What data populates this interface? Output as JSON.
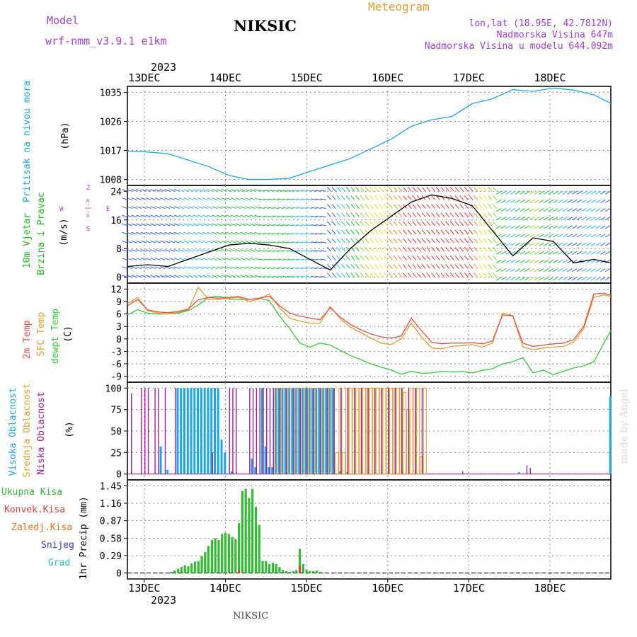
{
  "header": {
    "model_label": "Model",
    "model_name": "wrf-nmm_v3.9.1 e1km",
    "station": "NIKSIC",
    "product": "Meteogram",
    "coords": "lon,lat (18.95E, 42.7812N)",
    "elevation": "Nadmorska Visina 647m",
    "model_elevation": "Nadmorska Visina u modelu 644.092m",
    "year": "2023",
    "footer_station": "NIKSIC",
    "watermark": "made by Angel"
  },
  "colors": {
    "pressure": "#1aa7e8",
    "temp2m": "#f04a4a",
    "sfc_temp": "#e0a030",
    "dewpt": "#33cc33",
    "high_cloud": "#1aa7e8",
    "mid_cloud": "#e0a030",
    "low_cloud": "#a020a0",
    "total_precip": "#33bb33",
    "conv_precip": "#e04040",
    "frozen": "#e87020",
    "snow": "#3b3bd0",
    "hail": "#20c0c0",
    "wind_label": "#22bb22",
    "wind_dir_label": "#a040d0",
    "grid": "#8a8a8a"
  },
  "chart_data": {
    "time_axis": {
      "tick_labels": [
        "13DEC",
        "14DEC",
        "15DEC",
        "16DEC",
        "17DEC",
        "18DEC"
      ],
      "year": "2023",
      "start": "12DEC 19h",
      "end": "18DEC 12h"
    },
    "panels": [
      {
        "id": "pressure",
        "type": "line",
        "ylabel": [
          "Pritisak na nivou mora",
          "(hPa)"
        ],
        "yticks": [
          "1008",
          "1017",
          "1026",
          "1035"
        ],
        "ylim": [
          1008,
          1035
        ],
        "series": [
          {
            "hours": [
              0,
              6,
              12,
              18,
              24,
              30,
              36,
              42,
              48,
              54,
              60,
              66,
              72,
              78,
              84,
              90,
              96,
              102,
              108,
              114,
              120,
              126,
              132,
              138,
              143
            ],
            "values": [
              1016.8,
              1016.5,
              1016,
              1014,
              1012,
              1009.3,
              1008,
              1008,
              1008.4,
              1010.5,
              1012.5,
              1014.5,
              1017.5,
              1020.5,
              1024.5,
              1026.5,
              1027.5,
              1031.5,
              1033,
              1035.8,
              1035.3,
              1036.3,
              1035.7,
              1034.2,
              1031.6
            ]
          }
        ]
      },
      {
        "id": "wind",
        "type": "line",
        "ylabel": [
          "10m Vjetar",
          "Brzina i Pravac",
          "(m/s)"
        ],
        "direction_legend": [
          "W",
          "<-|->",
          "E",
          "S",
          "Z"
        ],
        "yticks": [
          "0",
          "8",
          "16",
          "24"
        ],
        "ylim": [
          0,
          24
        ],
        "series": [
          {
            "name": "speed",
            "hours": [
              0,
              6,
              12,
              18,
              24,
              30,
              36,
              42,
              48,
              54,
              60,
              66,
              72,
              78,
              84,
              90,
              96,
              102,
              108,
              114,
              120,
              126,
              132,
              138,
              143
            ],
            "values": [
              3,
              3.5,
              3,
              5,
              7,
              9,
              9.5,
              9,
              8,
              5,
              2,
              8,
              13,
              17,
              21,
              23,
              22,
              20,
              13,
              6,
              11,
              10,
              4,
              5,
              4
            ]
          }
        ]
      },
      {
        "id": "temperature",
        "type": "line",
        "ylabel": [
          "2m Temp",
          "SFC Temp",
          "dewpt Temp",
          "(C)"
        ],
        "yticks": [
          "-9",
          "-6",
          "-3",
          "0",
          "3",
          "6",
          "9",
          "12"
        ],
        "ylim": [
          -9,
          12
        ],
        "series": [
          {
            "name": "2m Temp",
            "hours": [
              0,
              3,
              6,
              9,
              12,
              15,
              18,
              21,
              24,
              27,
              30,
              33,
              36,
              39,
              42,
              45,
              48,
              51,
              54,
              57,
              60,
              63,
              66,
              69,
              72,
              75,
              78,
              81,
              84,
              87,
              90,
              93,
              96,
              99,
              102,
              105,
              108,
              111,
              114,
              117,
              120,
              123,
              126,
              129,
              132,
              135,
              138,
              141,
              143
            ],
            "values": [
              8,
              9.5,
              7,
              6.5,
              6.3,
              6.6,
              7.2,
              9.4,
              10,
              9.8,
              10,
              10.2,
              9.5,
              9.8,
              10.3,
              8,
              6.2,
              5.5,
              5,
              4.6,
              7.5,
              5.2,
              3.5,
              2.2,
              1.2,
              0.5,
              0.2,
              0.7,
              5,
              2,
              -0.8,
              -1.2,
              -1,
              -1,
              -0.9,
              -1.2,
              -0.5,
              5.8,
              5.5,
              -1,
              -1.8,
              -1.5,
              -1.2,
              -1,
              -0.2,
              3,
              10.8,
              11,
              10.5
            ]
          },
          {
            "name": "SFC Temp",
            "hours": [
              0,
              3,
              6,
              9,
              12,
              15,
              18,
              21,
              24,
              27,
              30,
              33,
              36,
              39,
              42,
              45,
              48,
              51,
              54,
              57,
              60,
              63,
              66,
              69,
              72,
              75,
              78,
              81,
              84,
              87,
              90,
              93,
              96,
              99,
              102,
              105,
              108,
              111,
              114,
              117,
              120,
              123,
              126,
              129,
              132,
              135,
              138,
              141,
              143
            ],
            "values": [
              8.5,
              10,
              6.8,
              6.2,
              6,
              6.4,
              7,
              12.4,
              9.5,
              9.5,
              9.8,
              10,
              9,
              9.6,
              10.8,
              7.5,
              5,
              4.3,
              3.8,
              3.8,
              7.8,
              4.8,
              2.8,
              1.5,
              0.2,
              -1,
              -1.4,
              0,
              3.8,
              0.5,
              -2.2,
              -2.4,
              -1.8,
              -1.6,
              -1.4,
              -2,
              -1,
              6.2,
              5.6,
              -2,
              -2.6,
              -2.2,
              -2,
              -1.8,
              -0.8,
              2.5,
              10,
              10.6,
              10.2
            ]
          },
          {
            "name": "dewpt Temp",
            "hours": [
              0,
              3,
              6,
              9,
              12,
              15,
              18,
              21,
              24,
              27,
              30,
              33,
              36,
              39,
              42,
              45,
              48,
              51,
              54,
              57,
              60,
              63,
              66,
              69,
              72,
              75,
              78,
              81,
              84,
              87,
              90,
              93,
              96,
              99,
              102,
              105,
              108,
              111,
              114,
              117,
              120,
              123,
              126,
              129,
              132,
              135,
              138,
              141,
              143
            ],
            "values": [
              5.8,
              7,
              6.2,
              6,
              6,
              6.2,
              6.8,
              8.2,
              10,
              10.3,
              9.6,
              9.5,
              9.5,
              9.8,
              9.2,
              5.5,
              2.5,
              -1,
              -2,
              -1,
              -1.5,
              -2.8,
              -4,
              -5,
              -6,
              -6.8,
              -7.5,
              -8.5,
              -7.8,
              -8.3,
              -8.2,
              -7.8,
              -8,
              -7.8,
              -8.2,
              -7.6,
              -7.2,
              -6,
              -5.5,
              -4.5,
              -8.2,
              -7.5,
              -8.6,
              -7.8,
              -7,
              -6.5,
              -5.5,
              -1,
              2
            ]
          }
        ]
      },
      {
        "id": "clouds",
        "type": "bar",
        "ylabel": [
          "Visoka Oblacnost",
          "Srednja Oblacnost",
          "Niska Oblacnost",
          "(%)"
        ],
        "yticks": [
          "0",
          "25",
          "50",
          "75",
          "100"
        ],
        "ylim": [
          0,
          100
        ],
        "series": [
          {
            "name": "Visoka Oblacnost",
            "hours": [
              10,
              12,
              15,
              16,
              17,
              18,
              19,
              20,
              21,
              22,
              23,
              24,
              25,
              26,
              27,
              28,
              29,
              31,
              37,
              38,
              40,
              41,
              42,
              43,
              44,
              45,
              46,
              47,
              48,
              49,
              50,
              51,
              52,
              53,
              54,
              55,
              56,
              57,
              58,
              59,
              60,
              61,
              63,
              65,
              116,
              143
            ],
            "values": [
              32,
              5,
              100,
              100,
              100,
              100,
              100,
              100,
              100,
              100,
              100,
              100,
              100,
              100,
              100,
              40,
              25,
              3,
              18,
              8,
              100,
              32,
              8,
              8,
              100,
              100,
              100,
              100,
              100,
              100,
              100,
              100,
              100,
              100,
              100,
              100,
              100,
              100,
              100,
              100,
              100,
              100,
              3,
              2,
              2,
              90
            ]
          },
          {
            "name": "Srednja Oblacnost",
            "hours": [
              44,
              46,
              48,
              50,
              52,
              54,
              56,
              58,
              60,
              62,
              63,
              64,
              65,
              66,
              67,
              68,
              69,
              70,
              71,
              72,
              73,
              74,
              75,
              76,
              77,
              78,
              79,
              80,
              81,
              82,
              83,
              84,
              85,
              86,
              87,
              88
            ],
            "values": [
              100,
              100,
              100,
              100,
              100,
              100,
              100,
              100,
              100,
              25,
              100,
              25,
              100,
              100,
              100,
              100,
              100,
              100,
              100,
              100,
              100,
              100,
              100,
              100,
              100,
              100,
              100,
              100,
              100,
              95,
              75,
              100,
              100,
              100,
              20,
              100
            ]
          },
          {
            "name": "Niska Oblacnost",
            "hours": [
              1,
              4,
              5,
              6,
              8,
              9,
              11,
              14,
              25,
              30,
              31,
              32,
              36,
              37,
              38,
              39,
              40,
              41,
              42,
              43,
              45,
              47,
              49,
              51,
              53,
              55,
              57,
              59,
              61,
              63,
              65,
              67,
              69,
              71,
              73,
              75,
              77,
              79,
              81,
              83,
              85,
              87,
              99,
              118,
              119
            ],
            "values": [
              94,
              100,
              100,
              100,
              100,
              100,
              100,
              100,
              25,
              100,
              100,
              100,
              100,
              100,
              100,
              100,
              100,
              100,
              100,
              100,
              100,
              100,
              100,
              100,
              100,
              100,
              100,
              100,
              100,
              100,
              100,
              100,
              100,
              100,
              100,
              100,
              100,
              100,
              100,
              100,
              100,
              100,
              3,
              10,
              7
            ]
          }
        ]
      },
      {
        "id": "precip",
        "type": "bar",
        "ylabel": [
          "1hr Precip (mm)"
        ],
        "legend": [
          "Ukupna Kisa",
          "Konvek.Kisa",
          "Zaledj.Kisa",
          "Snijeg",
          "Grad"
        ],
        "yticks": [
          "0",
          "0.29",
          "0.58",
          "0.87",
          "1.16",
          "1.45"
        ],
        "ylim": [
          0,
          1.45
        ],
        "series": [
          {
            "name": "Ukupna Kisa",
            "hours": [
              13,
              14,
              15,
              16,
              17,
              18,
              19,
              20,
              21,
              22,
              23,
              24,
              25,
              26,
              27,
              28,
              29,
              30,
              31,
              32,
              33,
              34,
              35,
              36,
              37,
              38,
              39,
              40,
              41,
              42,
              43,
              44,
              45,
              46,
              47,
              48,
              49,
              50,
              51,
              52,
              53,
              54,
              55,
              56,
              57
            ],
            "values": [
              0.02,
              0.04,
              0.07,
              0.1,
              0.13,
              0.11,
              0.16,
              0.19,
              0.2,
              0.28,
              0.35,
              0.45,
              0.55,
              0.58,
              0.55,
              0.65,
              0.67,
              0.65,
              0.6,
              0.56,
              0.83,
              1.36,
              1.4,
              1.25,
              1.4,
              1.1,
              0.8,
              0.2,
              0.2,
              0.15,
              0.17,
              0.15,
              0.1,
              0.05,
              0.03,
              0.02,
              0.03,
              0.05,
              0.4,
              0.15,
              0.06,
              0.03,
              0.03,
              0.04,
              0.02
            ]
          },
          {
            "name": "Konvek.Kisa",
            "hours": [
              33,
              51
            ],
            "values": [
              0.05,
              0.12
            ]
          },
          {
            "name": "Zaledj.Kisa",
            "hours": [],
            "values": []
          },
          {
            "name": "Snijeg",
            "hours": [],
            "values": []
          },
          {
            "name": "Grad",
            "hours": [],
            "values": []
          }
        ]
      }
    ]
  }
}
